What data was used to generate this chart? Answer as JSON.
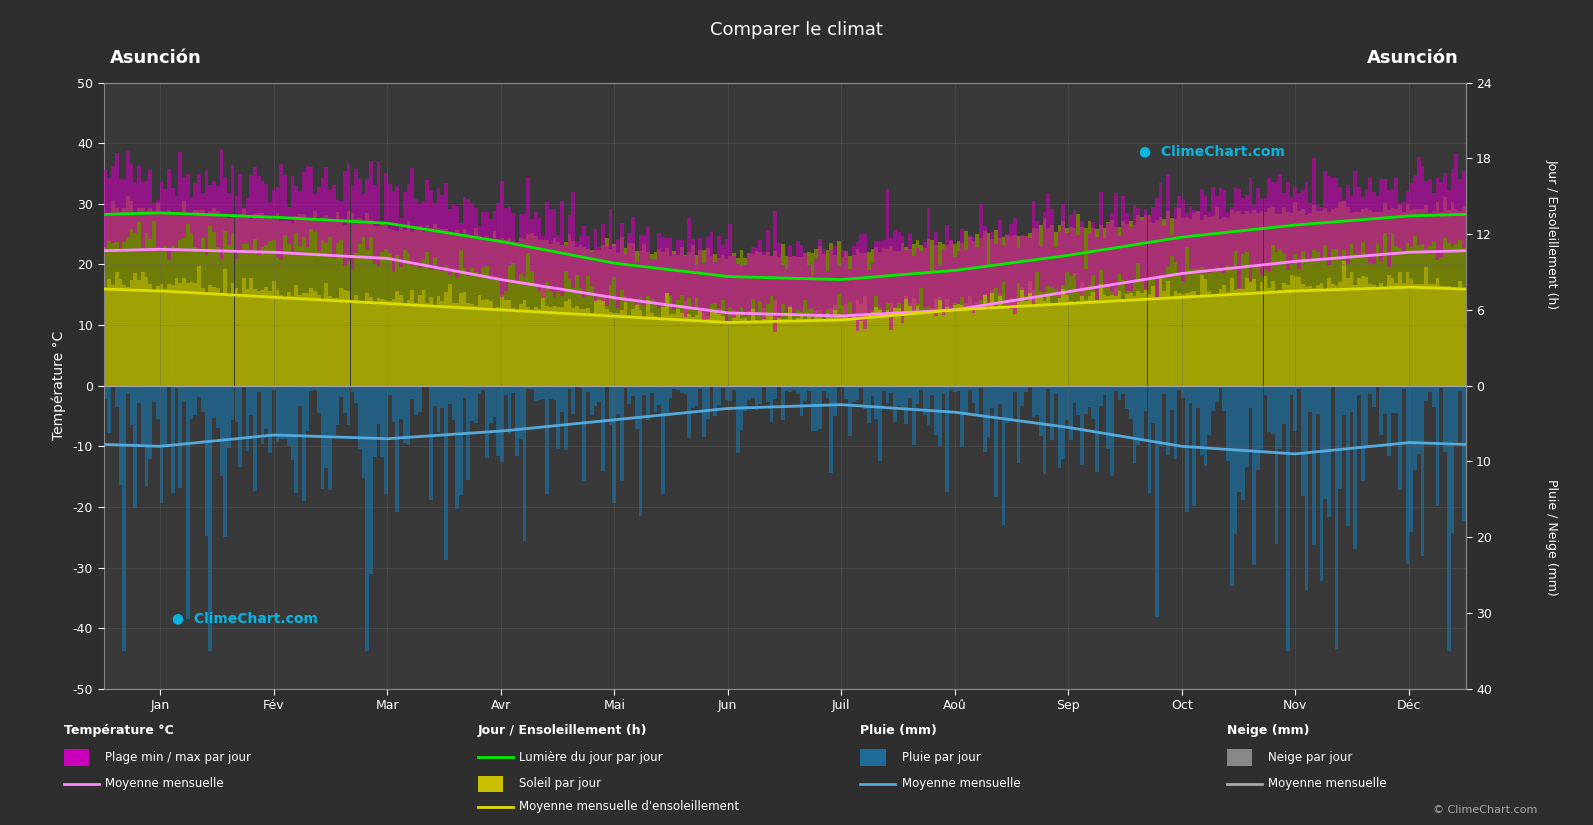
{
  "title": "Comparer le climat",
  "city_left": "Asunción",
  "city_right": "Asunción",
  "background_color": "#2e2e2e",
  "plot_bg_color": "#393939",
  "months": [
    "Jan",
    "Fév",
    "Mar",
    "Avr",
    "Mai",
    "Jun",
    "Juil",
    "Aoû",
    "Sep",
    "Oct",
    "Nov",
    "Déc"
  ],
  "left_axis_label": "Température °C",
  "right_axis_label1": "Jour / Ensoleillement (h)",
  "right_axis_label2": "Pluie / Neige (mm)",
  "temp_max_monthly": [
    35,
    34,
    33,
    29,
    25,
    22,
    22,
    24,
    27,
    30,
    32,
    34
  ],
  "temp_min_monthly": [
    24,
    23,
    22,
    18,
    15,
    13,
    12,
    13,
    16,
    19,
    21,
    23
  ],
  "temp_mean_max": [
    28.5,
    27.8,
    26.8,
    23.8,
    20.2,
    18.0,
    17.5,
    19.0,
    21.5,
    24.5,
    26.5,
    28.0
  ],
  "temp_mean_min": [
    22.5,
    22.0,
    21.0,
    17.5,
    14.5,
    12.0,
    11.5,
    12.5,
    15.5,
    18.5,
    20.5,
    22.0
  ],
  "daylight_monthly": [
    13.5,
    13.0,
    12.3,
    11.5,
    10.5,
    10.0,
    10.2,
    11.2,
    12.2,
    13.0,
    13.5,
    13.7
  ],
  "sunshine_monthly": [
    7.5,
    7.0,
    6.5,
    6.0,
    5.5,
    5.0,
    5.2,
    6.0,
    6.5,
    7.0,
    7.5,
    7.8
  ],
  "rain_daily_base": [
    130,
    110,
    120,
    90,
    60,
    40,
    35,
    45,
    75,
    110,
    140,
    130
  ],
  "rain_mean_monthly": [
    8.0,
    6.5,
    7.0,
    6.0,
    4.5,
    3.0,
    2.5,
    3.5,
    5.5,
    8.0,
    9.0,
    7.5
  ],
  "legend": {
    "temp_section": "Température °C",
    "plage_label": "Plage min / max par jour",
    "moy_mensuelle_temp": "Moyenne mensuelle",
    "jour_section": "Jour / Ensoleillement (h)",
    "lumiere_label": "Lumière du jour par jour",
    "soleil_label": "Soleil par jour",
    "moy_ensoleillement": "Moyenne mensuelle d'ensoleillement",
    "pluie_section": "Pluie (mm)",
    "pluie_label": "Pluie par jour",
    "moy_pluie": "Moyenne mensuelle",
    "neige_section": "Neige (mm)",
    "neige_label": "Neige par jour",
    "moy_neige": "Moyenne mensuelle"
  }
}
